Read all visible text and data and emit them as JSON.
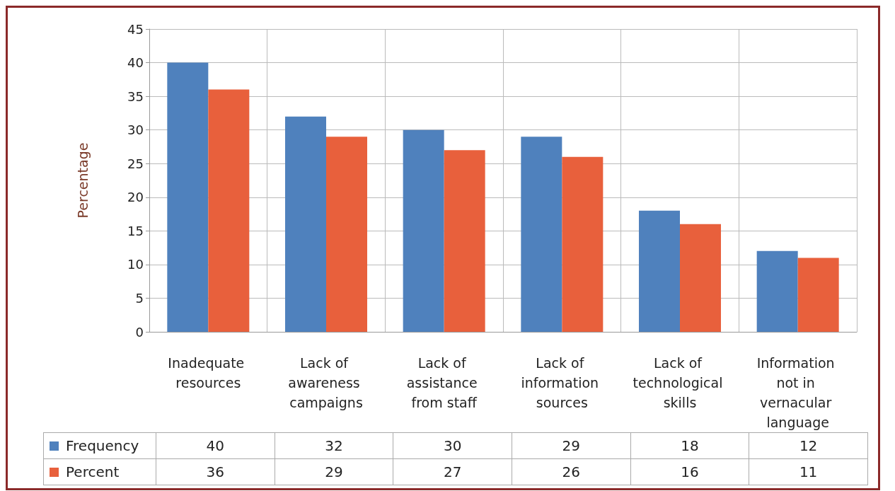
{
  "chart_data": {
    "type": "bar",
    "ylabel": "Percentage",
    "categories": [
      "Inadequate resources",
      "Lack of awareness campaigns",
      "Lack of assistance from staff",
      "Lack of information sources",
      "Lack of technological skills",
      "Information not in vernacular language"
    ],
    "series": [
      {
        "name": "Frequency",
        "color": "#4f81bd",
        "values": [
          40,
          32,
          30,
          29,
          18,
          12
        ]
      },
      {
        "name": "Percent",
        "color": "#e8603c",
        "values": [
          36,
          29,
          27,
          26,
          16,
          11
        ]
      }
    ],
    "ylim": [
      0,
      45
    ],
    "yticks": [
      0,
      5,
      10,
      15,
      20,
      25,
      30,
      35,
      40,
      45
    ],
    "grid": true,
    "legend": "bottom",
    "data_labels": true
  }
}
